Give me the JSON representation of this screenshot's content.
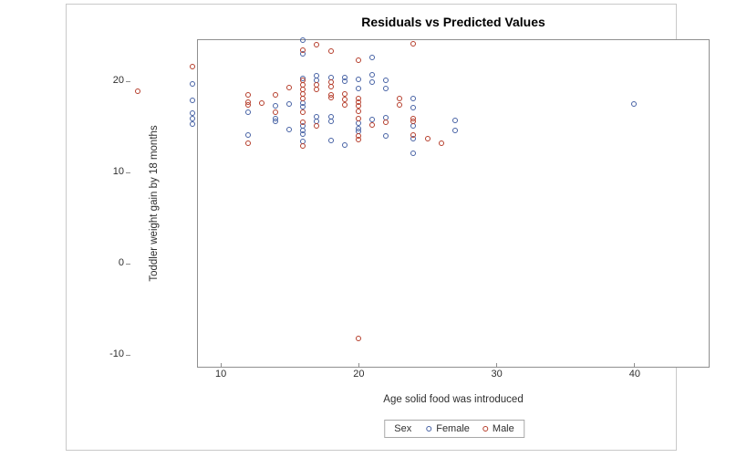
{
  "chart_data": {
    "type": "scatter",
    "title": "Residuals vs Predicted Values",
    "xlabel": "Age solid food was introduced",
    "ylabel": "Toddler weight gain by 18 months",
    "xlim": [
      3.45,
      40.6
    ],
    "ylim": [
      -10.9,
      25.1
    ],
    "xticks": [
      10,
      20,
      30,
      40
    ],
    "yticks": [
      20,
      10,
      0,
      -10
    ],
    "grid": false,
    "legend": {
      "title": "Sex",
      "position": "bottom-center",
      "entries": [
        {
          "label": "Female",
          "color": "#4661a4"
        },
        {
          "label": "Male",
          "color": "#b53d2b"
        }
      ]
    },
    "series": [
      {
        "name": "Female",
        "marker": "open-circle",
        "color": "#4661a4",
        "points": [
          [
            8,
            19.7
          ],
          [
            8,
            17.9
          ],
          [
            8,
            16.5
          ],
          [
            8,
            15.9
          ],
          [
            8,
            15.3
          ],
          [
            12,
            16.6
          ],
          [
            12,
            14.1
          ],
          [
            14,
            17.3
          ],
          [
            14,
            15.9
          ],
          [
            14,
            15.6
          ],
          [
            15,
            17.5
          ],
          [
            15,
            14.7
          ],
          [
            16,
            24.5
          ],
          [
            16,
            23.0
          ],
          [
            16,
            20.3
          ],
          [
            16,
            17.6
          ],
          [
            16,
            17.2
          ],
          [
            16,
            15.1
          ],
          [
            16,
            14.6
          ],
          [
            16,
            14.2
          ],
          [
            16,
            13.4
          ],
          [
            17,
            20.6
          ],
          [
            17,
            20.1
          ],
          [
            17,
            16.1
          ],
          [
            17,
            15.6
          ],
          [
            18,
            20.4
          ],
          [
            18,
            16.1
          ],
          [
            18,
            15.6
          ],
          [
            18,
            13.5
          ],
          [
            19,
            20.4
          ],
          [
            19,
            20.0
          ],
          [
            19,
            13.0
          ],
          [
            20,
            20.2
          ],
          [
            20,
            19.2
          ],
          [
            20,
            15.4
          ],
          [
            20,
            14.8
          ],
          [
            20,
            14.5
          ],
          [
            21,
            22.6
          ],
          [
            21,
            20.7
          ],
          [
            21,
            19.9
          ],
          [
            21,
            15.8
          ],
          [
            22,
            20.1
          ],
          [
            22,
            19.2
          ],
          [
            22,
            16.0
          ],
          [
            22,
            14.0
          ],
          [
            24,
            18.1
          ],
          [
            24,
            17.1
          ],
          [
            24,
            15.1
          ],
          [
            24,
            13.7
          ],
          [
            24,
            12.1
          ],
          [
            27,
            15.7
          ],
          [
            27,
            14.6
          ],
          [
            40,
            17.5
          ]
        ]
      },
      {
        "name": "Male",
        "marker": "open-circle",
        "color": "#b53d2b",
        "points": [
          [
            4,
            18.9
          ],
          [
            8,
            21.6
          ],
          [
            12,
            18.5
          ],
          [
            12,
            17.7
          ],
          [
            12,
            17.4
          ],
          [
            12,
            13.2
          ],
          [
            13,
            17.6
          ],
          [
            14,
            18.5
          ],
          [
            14,
            16.6
          ],
          [
            15,
            19.3
          ],
          [
            16,
            23.4
          ],
          [
            16,
            20.1
          ],
          [
            16,
            19.6
          ],
          [
            16,
            19.1
          ],
          [
            16,
            18.6
          ],
          [
            16,
            18.1
          ],
          [
            16,
            16.6
          ],
          [
            16,
            15.5
          ],
          [
            16,
            12.9
          ],
          [
            17,
            24.0
          ],
          [
            17,
            19.6
          ],
          [
            17,
            19.1
          ],
          [
            17,
            15.1
          ],
          [
            18,
            23.3
          ],
          [
            18,
            19.9
          ],
          [
            18,
            19.4
          ],
          [
            18,
            18.5
          ],
          [
            18,
            18.2
          ],
          [
            19,
            18.6
          ],
          [
            19,
            18.0
          ],
          [
            19,
            17.4
          ],
          [
            20,
            22.3
          ],
          [
            20,
            18.1
          ],
          [
            20,
            17.7
          ],
          [
            20,
            17.3
          ],
          [
            20,
            16.7
          ],
          [
            20,
            15.9
          ],
          [
            20,
            14.0
          ],
          [
            20,
            13.6
          ],
          [
            20,
            -8.2
          ],
          [
            21,
            15.2
          ],
          [
            22,
            15.5
          ],
          [
            23,
            18.1
          ],
          [
            23,
            17.4
          ],
          [
            24,
            24.1
          ],
          [
            24,
            15.9
          ],
          [
            24,
            15.6
          ],
          [
            24,
            14.1
          ],
          [
            25,
            13.7
          ],
          [
            26,
            13.2
          ]
        ]
      }
    ]
  },
  "colors": {
    "frame": "#8f8f8f",
    "outer_border": "#c9c9c9",
    "text": "#2e2e2e",
    "title_text": "#000000",
    "female": "#4661a4",
    "male": "#b53d2b"
  }
}
